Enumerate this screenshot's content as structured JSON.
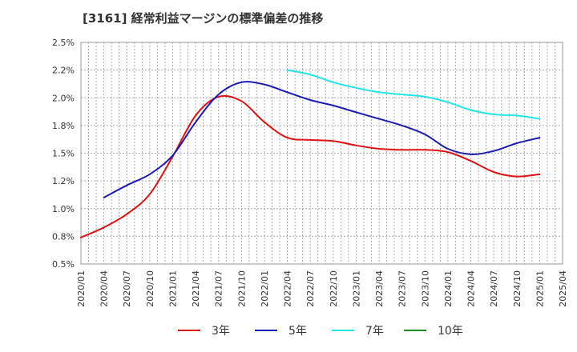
{
  "chart_data": {
    "type": "line",
    "title": "[3161]  経常利益マージンの標準偏差の推移",
    "xlabel": "",
    "ylabel": "",
    "ylim": [
      0.5,
      2.5
    ],
    "ytick_labels": [
      "0.5%",
      "0.8%",
      "1.0%",
      "1.2%",
      "1.5%",
      "1.8%",
      "2.0%",
      "2.2%",
      "2.5%"
    ],
    "x_ticks": [
      "2020/01",
      "2020/04",
      "2020/07",
      "2020/10",
      "2021/01",
      "2021/04",
      "2021/07",
      "2021/10",
      "2022/01",
      "2022/04",
      "2022/07",
      "2022/10",
      "2023/01",
      "2023/04",
      "2023/07",
      "2023/10",
      "2024/01",
      "2024/04",
      "2024/07",
      "2024/10",
      "2025/01",
      "2025/04"
    ],
    "grid": true,
    "legend_position": "bottom",
    "series": [
      {
        "name": "3年",
        "color": "#dd1111",
        "points": [
          [
            "2020/01",
            0.74
          ],
          [
            "2020/04",
            0.83
          ],
          [
            "2020/07",
            0.95
          ],
          [
            "2020/10",
            1.13
          ],
          [
            "2021/01",
            1.47
          ],
          [
            "2021/04",
            1.84
          ],
          [
            "2021/07",
            2.01
          ],
          [
            "2021/10",
            1.97
          ],
          [
            "2022/01",
            1.78
          ],
          [
            "2022/04",
            1.64
          ],
          [
            "2022/07",
            1.62
          ],
          [
            "2022/10",
            1.61
          ],
          [
            "2023/01",
            1.57
          ],
          [
            "2023/04",
            1.54
          ],
          [
            "2023/07",
            1.53
          ],
          [
            "2023/10",
            1.53
          ],
          [
            "2024/01",
            1.51
          ],
          [
            "2024/04",
            1.43
          ],
          [
            "2024/07",
            1.33
          ],
          [
            "2024/10",
            1.29
          ],
          [
            "2025/01",
            1.31
          ]
        ]
      },
      {
        "name": "5年",
        "color": "#1a1ab4",
        "points": [
          [
            "2020/04",
            1.1
          ],
          [
            "2020/07",
            1.21
          ],
          [
            "2020/10",
            1.31
          ],
          [
            "2021/01",
            1.48
          ],
          [
            "2021/04",
            1.78
          ],
          [
            "2021/07",
            2.03
          ],
          [
            "2021/10",
            2.14
          ],
          [
            "2022/01",
            2.12
          ],
          [
            "2022/04",
            2.05
          ],
          [
            "2022/07",
            1.98
          ],
          [
            "2022/10",
            1.93
          ],
          [
            "2023/01",
            1.87
          ],
          [
            "2023/04",
            1.81
          ],
          [
            "2023/07",
            1.75
          ],
          [
            "2023/10",
            1.67
          ],
          [
            "2024/01",
            1.54
          ],
          [
            "2024/04",
            1.49
          ],
          [
            "2024/07",
            1.52
          ],
          [
            "2024/10",
            1.59
          ],
          [
            "2025/01",
            1.64
          ]
        ]
      },
      {
        "name": "7年",
        "color": "#22e5e5",
        "points": [
          [
            "2022/04",
            2.25
          ],
          [
            "2022/07",
            2.21
          ],
          [
            "2022/10",
            2.14
          ],
          [
            "2023/01",
            2.09
          ],
          [
            "2023/04",
            2.05
          ],
          [
            "2023/07",
            2.03
          ],
          [
            "2023/10",
            2.01
          ],
          [
            "2024/01",
            1.96
          ],
          [
            "2024/04",
            1.89
          ],
          [
            "2024/07",
            1.85
          ],
          [
            "2024/10",
            1.84
          ],
          [
            "2025/01",
            1.81
          ]
        ]
      },
      {
        "name": "10年",
        "color": "#228822",
        "points": []
      }
    ]
  }
}
